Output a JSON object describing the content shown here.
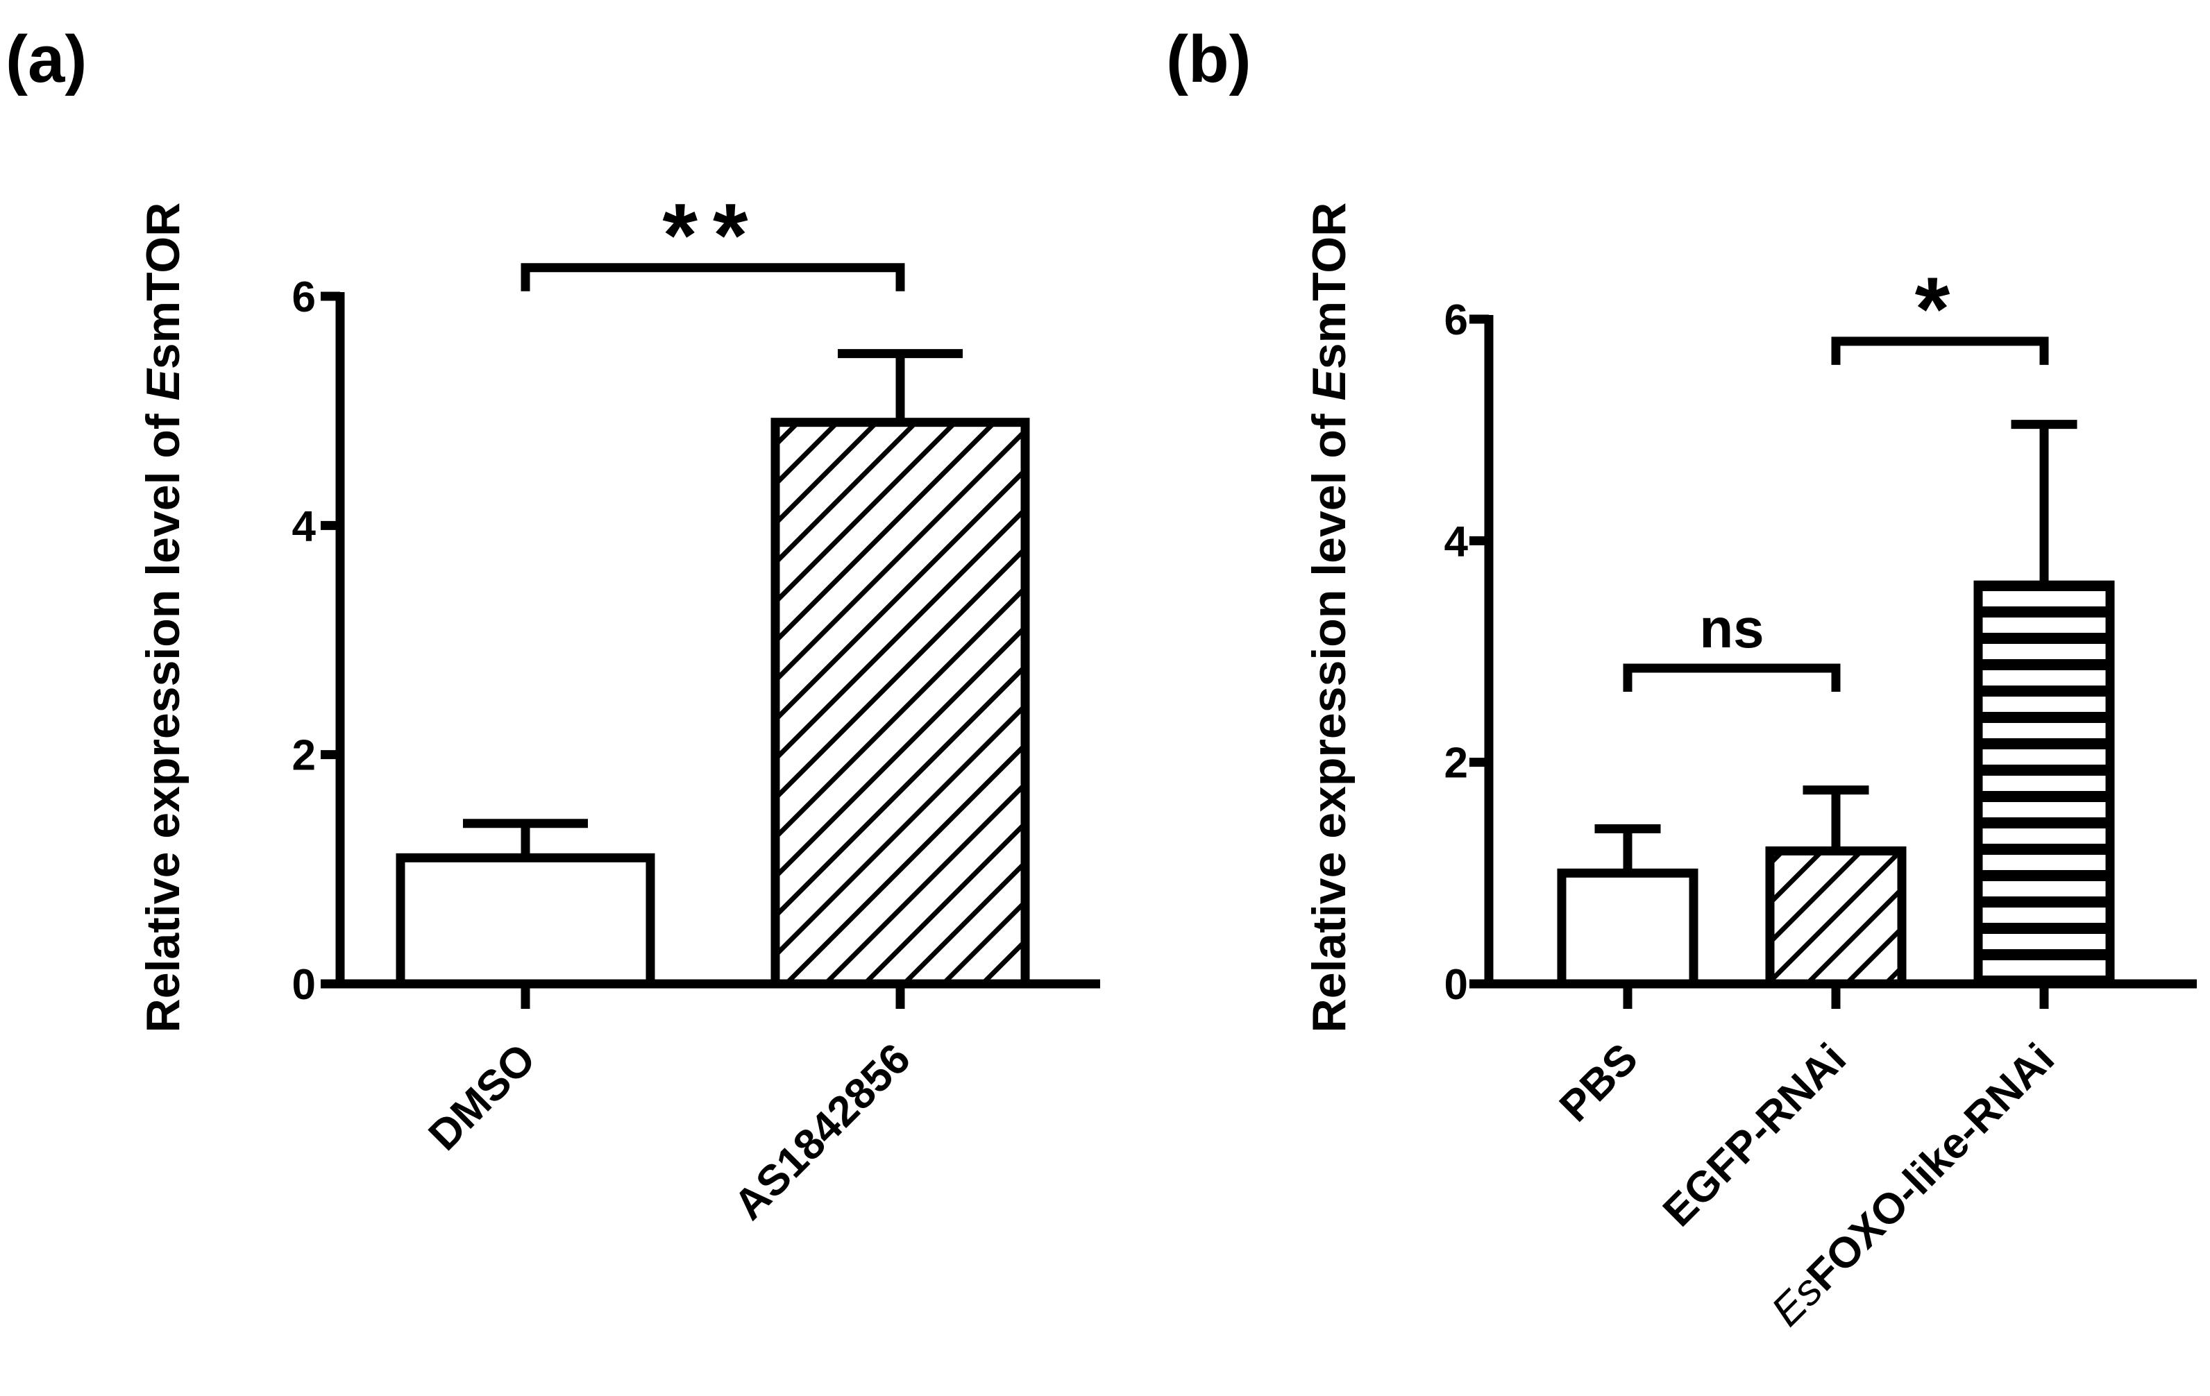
{
  "colors": {
    "ink": "#000000",
    "bar_fill": "#ffffff"
  },
  "chart_data": [
    {
      "panel_label": "(a)",
      "type": "bar",
      "ylabel_prefix": "Relative expression level of ",
      "ylabel_gene_italic": "E",
      "ylabel_gene_rest": "smTOR",
      "categories": [
        "DMSO",
        "AS1842856"
      ],
      "category_italic_prefix": [
        "",
        ""
      ],
      "values": [
        1.1,
        4.9
      ],
      "errors": [
        0.3,
        0.6
      ],
      "patterns": [
        "none",
        "diagonal"
      ],
      "ylim": [
        0,
        6
      ],
      "yticks": [
        0,
        2,
        4,
        6
      ],
      "significance": [
        {
          "from": 0,
          "to": 1,
          "label": "**",
          "y": 6.25
        }
      ]
    },
    {
      "panel_label": "(b)",
      "type": "bar",
      "ylabel_prefix": "Relative expression level of ",
      "ylabel_gene_italic": "E",
      "ylabel_gene_rest": "smTOR",
      "categories": [
        "PBS",
        "EGFP-RNAi",
        "FOXO-like-RNAi"
      ],
      "category_italic_prefix": [
        "",
        "",
        "Es"
      ],
      "values": [
        1.0,
        1.2,
        3.6
      ],
      "errors": [
        0.4,
        0.55,
        1.45
      ],
      "patterns": [
        "none",
        "diagonal",
        "horizontal"
      ],
      "ylim": [
        0,
        6
      ],
      "yticks": [
        0,
        2,
        4,
        6
      ],
      "significance": [
        {
          "from": 0,
          "to": 1,
          "label": "ns",
          "y": 2.85
        },
        {
          "from": 1,
          "to": 2,
          "label": "*",
          "y": 5.8
        }
      ]
    }
  ]
}
